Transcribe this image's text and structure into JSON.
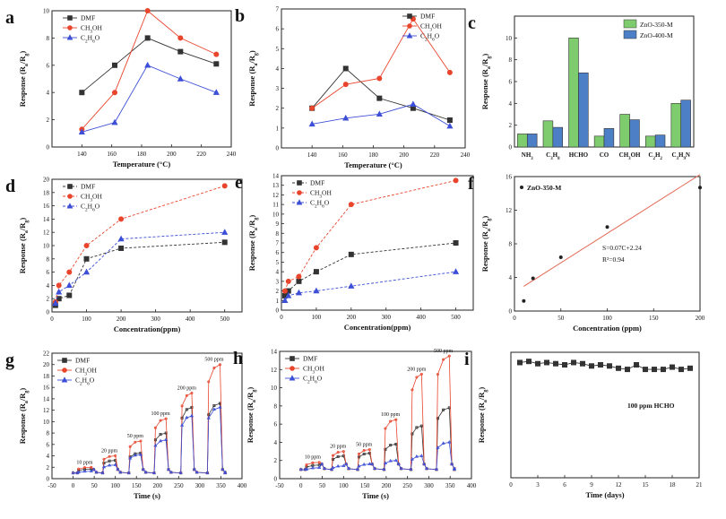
{
  "panels": [
    {
      "letter": "a",
      "type": "line",
      "xlabel": "Temperature (°C)",
      "ylabel": "Response (R_a/R_g)",
      "xlim": [
        120,
        240
      ],
      "ylim": [
        0,
        10
      ],
      "xticks": [
        140,
        160,
        180,
        200,
        220,
        240
      ],
      "yticks": [
        0,
        2,
        4,
        6,
        8,
        10
      ],
      "legend": "top-left",
      "grid": false,
      "series": [
        {
          "name": "DMF",
          "color": "#333333",
          "marker": "square",
          "dashed": false,
          "x": [
            140,
            162,
            184,
            206,
            230
          ],
          "y": [
            4.0,
            6.0,
            8.0,
            7.0,
            6.1
          ]
        },
        {
          "name": "CH3OH",
          "color": "#e8452c",
          "marker": "circle",
          "dashed": false,
          "x": [
            140,
            162,
            184,
            206,
            230
          ],
          "y": [
            1.3,
            4.0,
            10.0,
            8.0,
            6.8
          ]
        },
        {
          "name": "C2H6O",
          "color": "#3c4fd6",
          "marker": "triangle",
          "dashed": false,
          "x": [
            140,
            162,
            184,
            206,
            230
          ],
          "y": [
            1.1,
            1.8,
            6.0,
            5.0,
            4.0
          ]
        }
      ]
    },
    {
      "letter": "b",
      "type": "line",
      "xlabel": "Temperature (°C)",
      "ylabel": "Response (R_a/R_g)",
      "xlim": [
        120,
        240
      ],
      "ylim": [
        0,
        7
      ],
      "xticks": [
        140,
        160,
        180,
        200,
        220,
        240
      ],
      "yticks": [
        0,
        1,
        2,
        3,
        4,
        5,
        6,
        7
      ],
      "legend": "top-right",
      "grid": false,
      "series": [
        {
          "name": "DMF",
          "color": "#333333",
          "marker": "square",
          "dashed": false,
          "x": [
            140,
            162,
            184,
            206,
            230
          ],
          "y": [
            2.0,
            4.0,
            2.5,
            2.0,
            1.4
          ]
        },
        {
          "name": "CH3OH",
          "color": "#e8452c",
          "marker": "circle",
          "dashed": false,
          "x": [
            140,
            162,
            184,
            206,
            230
          ],
          "y": [
            2.0,
            3.2,
            3.5,
            6.5,
            3.8
          ]
        },
        {
          "name": "C2H6O",
          "color": "#3c4fd6",
          "marker": "triangle",
          "dashed": false,
          "x": [
            140,
            162,
            184,
            206,
            230
          ],
          "y": [
            1.2,
            1.5,
            1.7,
            2.2,
            1.1
          ]
        }
      ]
    },
    {
      "letter": "c",
      "type": "bar",
      "xlabel": "",
      "ylabel": "Response (R_a/R_g)",
      "ylim": [
        0,
        12
      ],
      "yticks": [
        0,
        2,
        4,
        6,
        8,
        10
      ],
      "categories": [
        "NH3",
        "C3H8",
        "HCHO",
        "CO",
        "CH3OH",
        "C2H2",
        "C3H9N"
      ],
      "legend": "top-right",
      "grid": false,
      "series": [
        {
          "name": "ZnO-350-M",
          "color": "#7fcc6f",
          "values": [
            1.2,
            2.4,
            10.0,
            1.0,
            3.0,
            1.0,
            4.0
          ]
        },
        {
          "name": "ZnO-400-M",
          "color": "#4d7fc7",
          "values": [
            1.2,
            1.8,
            6.8,
            1.7,
            2.5,
            1.1,
            4.3
          ]
        }
      ]
    },
    {
      "letter": "d",
      "type": "line",
      "xlabel": "Concentration(ppm)",
      "ylabel": "Response (R_a/R_g)",
      "xlim": [
        0,
        550
      ],
      "ylim": [
        0,
        20
      ],
      "xticks": [
        0,
        100,
        200,
        300,
        400,
        500
      ],
      "yticks": [
        0,
        2,
        4,
        6,
        8,
        10,
        12,
        14,
        16,
        18,
        20
      ],
      "legend": "top-left",
      "grid": false,
      "series": [
        {
          "name": "DMF",
          "color": "#333333",
          "marker": "square",
          "dashed": true,
          "x": [
            10,
            20,
            50,
            100,
            200,
            500
          ],
          "y": [
            1.0,
            2.0,
            2.5,
            8.0,
            9.6,
            10.5
          ]
        },
        {
          "name": "CH3OH",
          "color": "#e8452c",
          "marker": "circle",
          "dashed": true,
          "x": [
            10,
            20,
            50,
            100,
            200,
            500
          ],
          "y": [
            1.5,
            4.0,
            6.0,
            10.0,
            14.0,
            19.0
          ]
        },
        {
          "name": "C2H6O",
          "color": "#3c4fd6",
          "marker": "triangle",
          "dashed": true,
          "x": [
            10,
            20,
            50,
            100,
            200,
            500
          ],
          "y": [
            1.3,
            3.0,
            4.0,
            6.0,
            11.0,
            12.0
          ]
        }
      ]
    },
    {
      "letter": "e",
      "type": "line",
      "xlabel": "Concentration(ppm)",
      "ylabel": "Response (R_a/R_g)",
      "xlim": [
        0,
        550
      ],
      "ylim": [
        0,
        14
      ],
      "xticks": [
        0,
        100,
        200,
        300,
        400,
        500
      ],
      "yticks": [
        0,
        1,
        2,
        3,
        4,
        5,
        6,
        7,
        8,
        9,
        10,
        11,
        12,
        13,
        14
      ],
      "legend": "top-left",
      "grid": false,
      "series": [
        {
          "name": "DMF",
          "color": "#333333",
          "marker": "square",
          "dashed": true,
          "x": [
            10,
            20,
            50,
            100,
            200,
            500
          ],
          "y": [
            1.5,
            2.0,
            3.0,
            4.0,
            5.8,
            7.0
          ]
        },
        {
          "name": "CH3OH",
          "color": "#e8452c",
          "marker": "circle",
          "dashed": true,
          "x": [
            10,
            20,
            50,
            100,
            200,
            500
          ],
          "y": [
            2.0,
            3.0,
            3.5,
            6.5,
            11.0,
            13.5
          ]
        },
        {
          "name": "C2H6O",
          "color": "#3c4fd6",
          "marker": "triangle",
          "dashed": true,
          "x": [
            10,
            20,
            50,
            100,
            200,
            500
          ],
          "y": [
            1.0,
            1.5,
            1.8,
            2.0,
            2.5,
            4.0
          ]
        }
      ]
    },
    {
      "letter": "f",
      "type": "scatter",
      "xlabel": "Concentration (ppm)",
      "ylabel": "Response (R_a/R_g)",
      "xlim": [
        0,
        200
      ],
      "ylim": [
        0,
        16
      ],
      "xticks": [
        0,
        50,
        100,
        150,
        200
      ],
      "yticks": [
        0,
        4,
        8,
        12,
        16
      ],
      "legend": "top-left",
      "grid": false,
      "label": "ZnO-350-M",
      "points": {
        "x": [
          10,
          20,
          50,
          100,
          200
        ],
        "y": [
          1.2,
          3.9,
          6.4,
          10.0,
          14.7
        ]
      },
      "fit": {
        "slope": 0.07,
        "intercept": 2.24,
        "color": "#e06650"
      },
      "fit_equation": "S=0.07C+2.24",
      "r_squared": "R²=0.94"
    },
    {
      "letter": "g",
      "type": "line",
      "xlabel": "Time (s)",
      "ylabel": "Response (R_a/R_g)",
      "xlim": [
        -50,
        400
      ],
      "ylim": [
        0,
        22
      ],
      "xticks": [
        -50,
        0,
        50,
        100,
        150,
        200,
        250,
        300,
        350,
        400
      ],
      "yticks": [
        0,
        2,
        4,
        6,
        8,
        10,
        12,
        14,
        16,
        18,
        20,
        22
      ],
      "legend": "top-left",
      "grid": false,
      "pulses": [
        {
          "start": 10,
          "end": 45,
          "label": "10 ppm"
        },
        {
          "start": 70,
          "end": 102,
          "label": "20 ppm"
        },
        {
          "start": 132,
          "end": 162,
          "label": "50 ppm"
        },
        {
          "start": 192,
          "end": 222,
          "label": "100 ppm"
        },
        {
          "start": 255,
          "end": 283,
          "label": "200 ppm"
        },
        {
          "start": 318,
          "end": 350,
          "label": "500 ppm"
        }
      ],
      "series": [
        {
          "name": "DMF",
          "color": "#333333",
          "marker": "square",
          "peaks": [
            1.7,
            3.2,
            4.5,
            8.0,
            12.5,
            13.2
          ]
        },
        {
          "name": "CH3OH",
          "color": "#e8452c",
          "marker": "circle",
          "peaks": [
            2.0,
            4.0,
            6.6,
            10.5,
            15.0,
            20.0
          ]
        },
        {
          "name": "C2H6O",
          "color": "#3c4fd6",
          "marker": "triangle",
          "peaks": [
            1.3,
            2.4,
            4.2,
            6.8,
            11.0,
            12.5
          ]
        }
      ]
    },
    {
      "letter": "h",
      "type": "line",
      "xlabel": "Time (s)",
      "ylabel": "Response (R_a/R_g)",
      "xlim": [
        -50,
        400
      ],
      "ylim": [
        0,
        14
      ],
      "xticks": [
        -50,
        0,
        50,
        100,
        150,
        200,
        250,
        300,
        350,
        400
      ],
      "yticks": [
        0,
        2,
        4,
        6,
        8,
        10,
        12,
        14
      ],
      "legend": "top-left",
      "grid": false,
      "pulses": [
        {
          "start": 10,
          "end": 45,
          "label": "10 ppm"
        },
        {
          "start": 72,
          "end": 102,
          "label": "20 ppm"
        },
        {
          "start": 133,
          "end": 163,
          "label": "50 ppm"
        },
        {
          "start": 195,
          "end": 225,
          "label": "100 ppm"
        },
        {
          "start": 258,
          "end": 285,
          "label": "200 ppm"
        },
        {
          "start": 318,
          "end": 350,
          "label": "500 ppm"
        }
      ],
      "series": [
        {
          "name": "DMF",
          "color": "#333333",
          "marker": "square",
          "peaks": [
            1.5,
            2.5,
            2.8,
            3.8,
            5.8,
            7.8
          ]
        },
        {
          "name": "CH3OH",
          "color": "#e8452c",
          "marker": "circle",
          "peaks": [
            1.8,
            3.0,
            3.2,
            6.5,
            11.5,
            13.5
          ]
        },
        {
          "name": "C2H6O",
          "color": "#3c4fd6",
          "marker": "triangle",
          "peaks": [
            1.2,
            1.4,
            1.6,
            2.0,
            2.5,
            4.0
          ]
        }
      ]
    },
    {
      "letter": "i",
      "type": "line",
      "xlabel": "Time (days)",
      "ylabel": "Response (R_a/R_g)",
      "xlim": [
        0,
        21
      ],
      "ylim": [
        0,
        11
      ],
      "xticks": [
        0,
        3,
        6,
        9,
        12,
        15,
        18,
        21
      ],
      "yticks": [],
      "legend": "none",
      "grid": false,
      "annotation": "100 ppm HCHO",
      "series": [
        {
          "name": "HCHO",
          "color": "#333333",
          "marker": "square",
          "dashed": false,
          "x": [
            1,
            2,
            3,
            4,
            5,
            6,
            7,
            8,
            9,
            10,
            11,
            12,
            13,
            14,
            15,
            16,
            17,
            18,
            19,
            20
          ],
          "y": [
            10.1,
            10.2,
            10.0,
            10.1,
            10.0,
            9.9,
            10.1,
            10.0,
            9.8,
            9.9,
            9.8,
            9.6,
            9.5,
            9.9,
            9.5,
            9.5,
            9.5,
            9.7,
            9.5,
            9.6
          ]
        }
      ]
    }
  ]
}
